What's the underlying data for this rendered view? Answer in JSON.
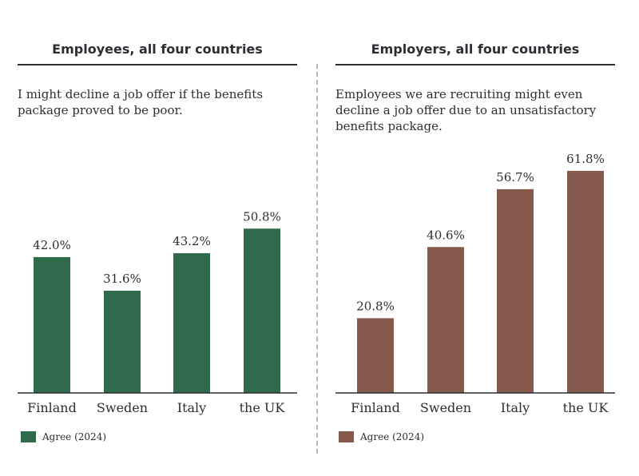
{
  "chart_data": [
    {
      "type": "bar",
      "title": "Employees, all four countries",
      "subtitle": "I might decline a job offer if the benefits package proved to be poor.",
      "categories": [
        "Finland",
        "Sweden",
        "Italy",
        "the UK"
      ],
      "series": [
        {
          "name": "Agree (2024)",
          "values": [
            42.0,
            31.6,
            43.2,
            50.8
          ],
          "labels": [
            "42.0%",
            "31.6%",
            "43.2%",
            "50.8%"
          ],
          "color": "#2f6a4a"
        }
      ],
      "ylim": [
        0,
        60
      ],
      "grid": false,
      "legend": "bottom-left"
    },
    {
      "type": "bar",
      "title": "Employers, all four countries",
      "subtitle": "Employees we are recruiting might even decline a job offer due to an unsatisfactory benefits package.",
      "categories": [
        "Finland",
        "Sweden",
        "Italy",
        "the UK"
      ],
      "series": [
        {
          "name": "Agree (2024)",
          "values": [
            20.8,
            40.6,
            56.7,
            61.8
          ],
          "labels": [
            "20.8%",
            "40.6%",
            "56.7%",
            "61.8%"
          ],
          "color": "#85594b"
        }
      ],
      "ylim": [
        0,
        70
      ],
      "grid": false,
      "legend": "bottom-left"
    }
  ]
}
